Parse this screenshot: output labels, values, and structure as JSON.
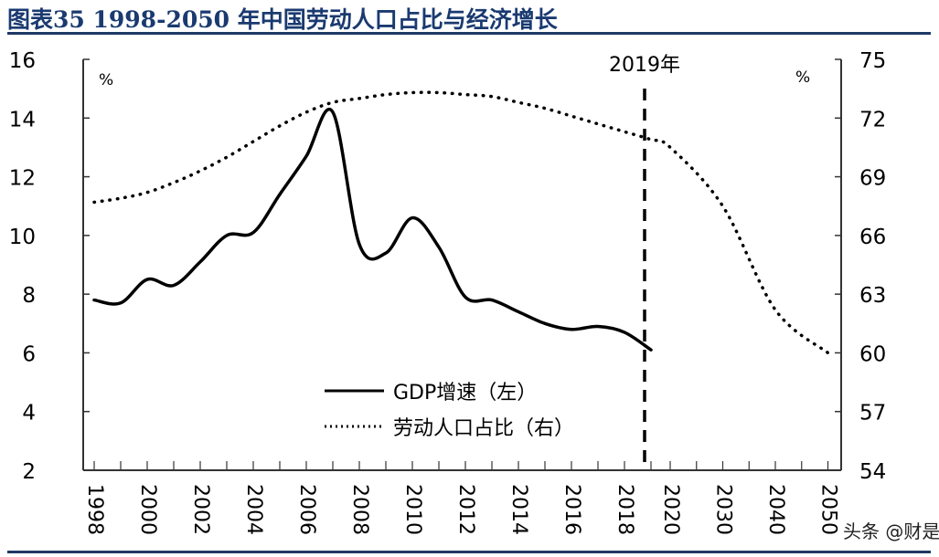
{
  "title": "图表35  1998-2050 年中国劳动人口占比与经济增长",
  "watermark": "头条 @财是",
  "chart_data": {
    "type": "line",
    "title": "图表35  1998-2050 年中国劳动人口占比与经济增长",
    "categories": [
      "1998",
      "1999",
      "2000",
      "2001",
      "2002",
      "2003",
      "2004",
      "2005",
      "2006",
      "2007",
      "2008",
      "2009",
      "2010",
      "2011",
      "2012",
      "2013",
      "2014",
      "2015",
      "2016",
      "2017",
      "2018",
      "2019",
      "2020",
      "2030",
      "2040",
      "2050"
    ],
    "x_tick_labels": [
      "1998",
      "2000",
      "2002",
      "2004",
      "2006",
      "2008",
      "2010",
      "2012",
      "2014",
      "2016",
      "2018",
      "2020",
      "2030",
      "2040",
      "2050"
    ],
    "left_axis": {
      "unit": "%",
      "ylim": [
        2,
        16
      ],
      "ticks": [
        2,
        4,
        6,
        8,
        10,
        12,
        14,
        16
      ]
    },
    "right_axis": {
      "unit": "%",
      "ylim": [
        54,
        75
      ],
      "ticks": [
        54,
        57,
        60,
        63,
        66,
        69,
        72,
        75
      ]
    },
    "series": [
      {
        "name": "GDP增速（左）",
        "axis": "left",
        "style": "solid",
        "x": [
          "1998",
          "1999",
          "2000",
          "2001",
          "2002",
          "2003",
          "2004",
          "2005",
          "2006",
          "2007",
          "2008",
          "2009",
          "2010",
          "2011",
          "2012",
          "2013",
          "2014",
          "2015",
          "2016",
          "2017",
          "2018",
          "2019"
        ],
        "values": [
          7.8,
          7.7,
          8.5,
          8.3,
          9.1,
          10.0,
          10.1,
          11.4,
          12.7,
          14.2,
          9.7,
          9.4,
          10.6,
          9.6,
          7.9,
          7.8,
          7.4,
          7.0,
          6.8,
          6.9,
          6.7,
          6.1
        ]
      },
      {
        "name": "劳动人口占比（右）",
        "axis": "right",
        "style": "dotted",
        "x": [
          "1998",
          "1999",
          "2000",
          "2001",
          "2002",
          "2003",
          "2004",
          "2005",
          "2006",
          "2007",
          "2008",
          "2009",
          "2010",
          "2011",
          "2012",
          "2013",
          "2014",
          "2015",
          "2016",
          "2017",
          "2018",
          "2019",
          "2020",
          "2030",
          "2040",
          "2050"
        ],
        "values": [
          67.7,
          67.9,
          68.2,
          68.7,
          69.3,
          70.0,
          70.8,
          71.6,
          72.3,
          72.8,
          73.0,
          73.2,
          73.3,
          73.3,
          73.2,
          73.1,
          72.8,
          72.5,
          72.1,
          71.7,
          71.3,
          70.9,
          70.5,
          67.5,
          62.2,
          60.0
        ]
      }
    ],
    "annotation": {
      "label": "2019年",
      "x": "2019",
      "style": "dashed vertical line"
    },
    "legend_position": "bottom-center",
    "grid": false
  }
}
